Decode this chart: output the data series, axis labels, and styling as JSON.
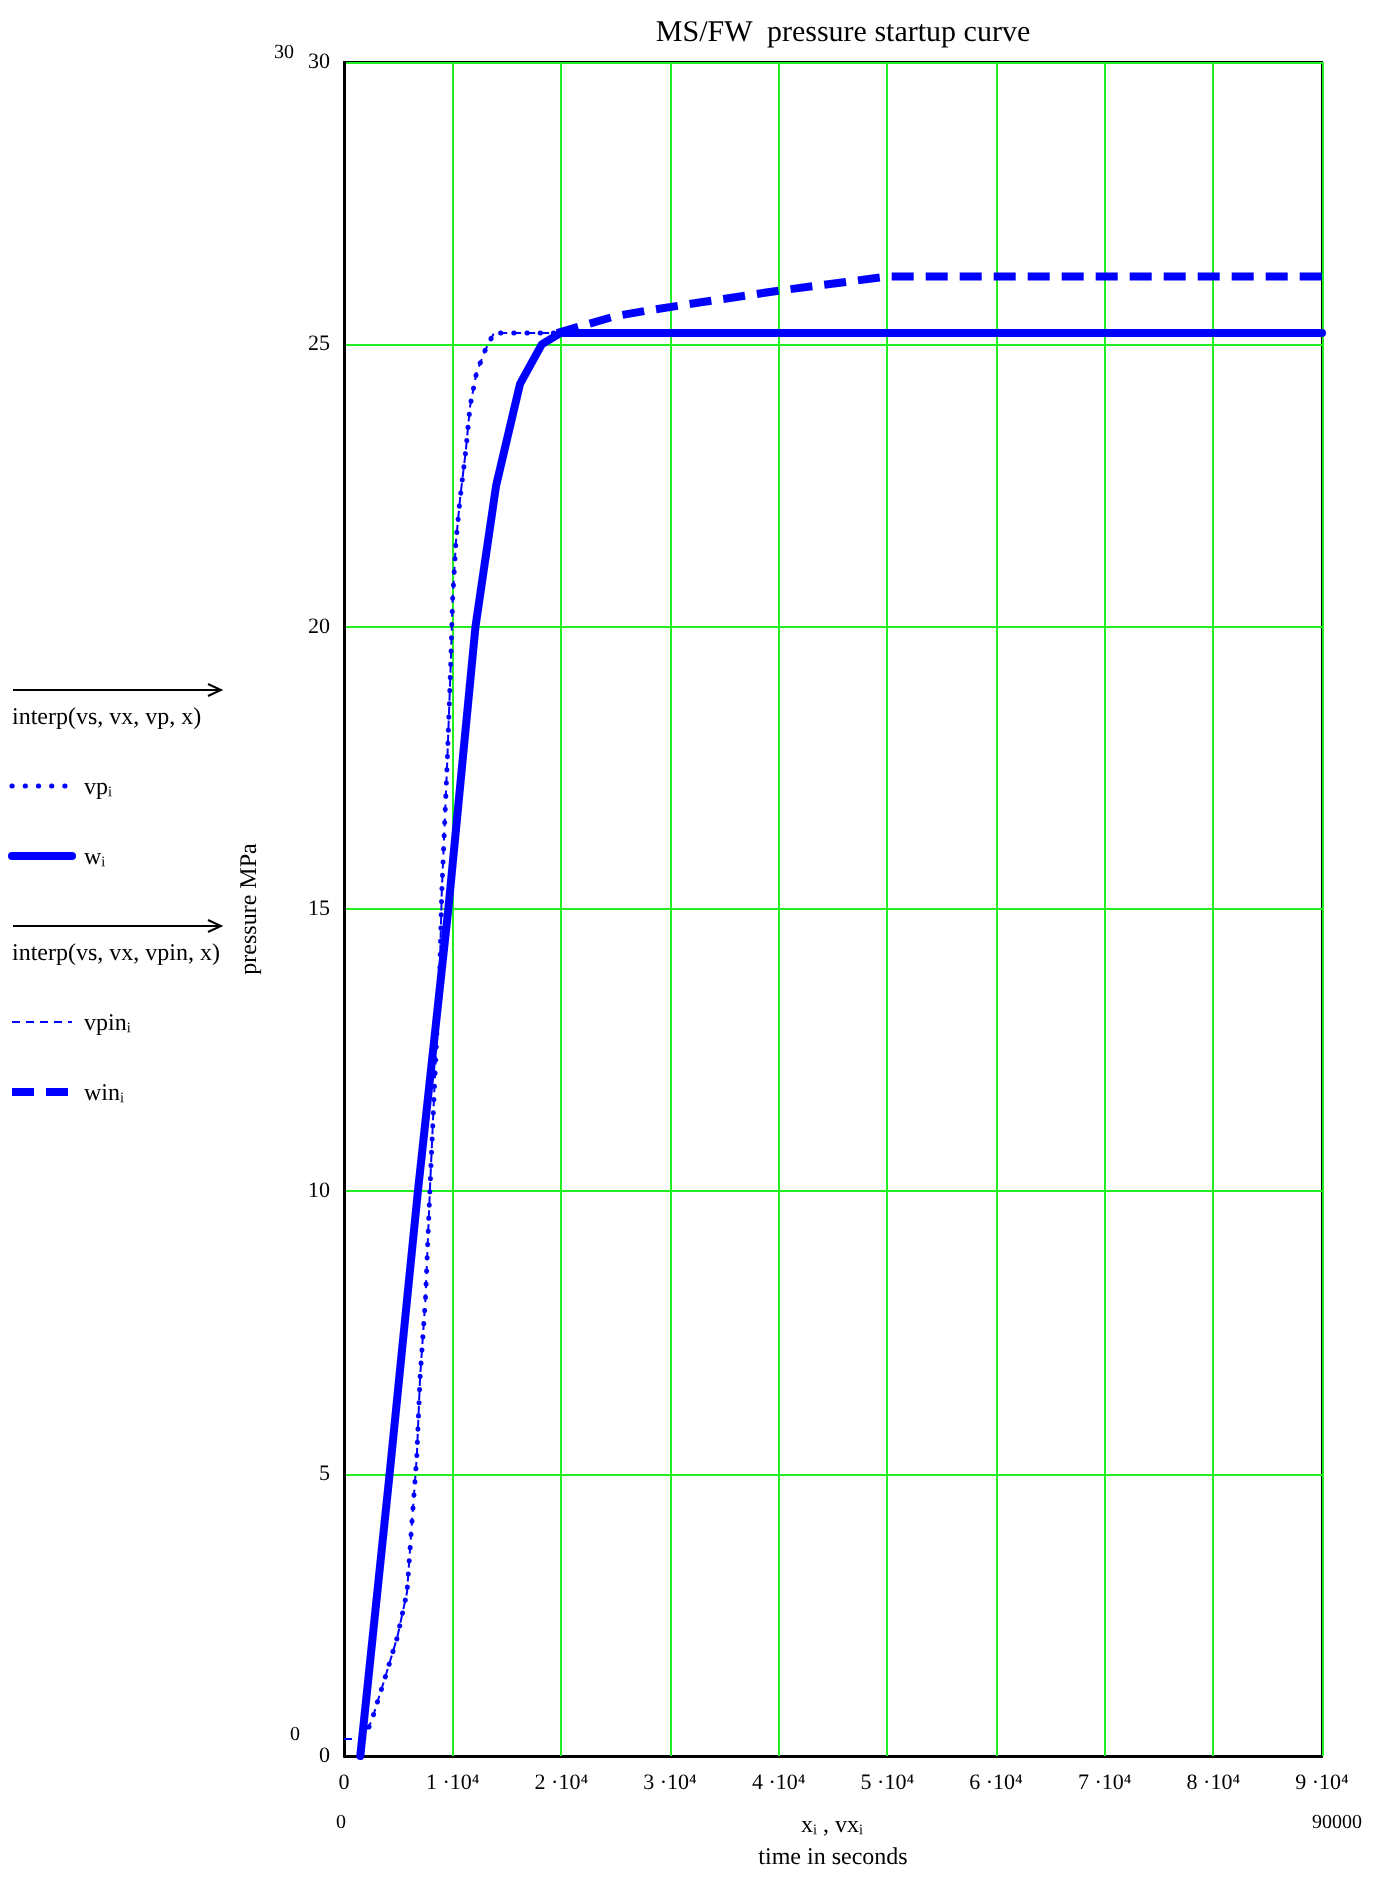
{
  "chart_data": {
    "type": "line",
    "title": "MS/FW  pressure startup curve",
    "xlabel": "time in seconds",
    "ylabel": "pressure MPa",
    "xlim": [
      0,
      90000
    ],
    "xticks": [
      0,
      {
        "value": 10000,
        "label": "1 ·10⁴"
      },
      {
        "value": 20000,
        "label": "2 ·10⁴"
      },
      {
        "value": 30000,
        "label": "3 ·10⁴"
      },
      {
        "value": 40000,
        "label": "4 ·10⁴"
      },
      {
        "value": 50000,
        "label": "5 ·10⁴"
      },
      {
        "value": 60000,
        "label": "6 ·10⁴"
      },
      {
        "value": 70000,
        "label": "7 ·10⁴"
      },
      {
        "value": 80000,
        "label": "8 ·10⁴"
      },
      {
        "value": 90000,
        "label": "9 ·10⁴"
      }
    ],
    "ylim": [
      0,
      30
    ],
    "yticks": [
      0,
      5,
      10,
      15,
      20,
      25,
      30
    ],
    "grid": true,
    "legend": "left",
    "series": [
      {
        "name": "vpᵢ",
        "color": "#0000ff",
        "line_style": "dotted",
        "x": [
          1800,
          2500,
          3800,
          4900,
          5800,
          6200,
          6700,
          7000,
          7500,
          7900,
          8500,
          8800,
          9000,
          9500,
          9800,
          10000,
          10300,
          10700,
          11200,
          11600,
          12200,
          13000,
          13800,
          19600
        ],
        "values": [
          0.3,
          0.6,
          1.4,
          2.1,
          2.9,
          4.0,
          5.3,
          6.7,
          8.1,
          10.0,
          12.6,
          13.8,
          15.3,
          17.6,
          19.2,
          20.5,
          21.5,
          22.3,
          23.1,
          23.9,
          24.5,
          24.9,
          25.2,
          25.2
        ]
      },
      {
        "name": "wᵢ",
        "color": "#0000ff",
        "line_style": "solid",
        "x": [
          1500,
          4200,
          6800,
          9600,
          12100,
          14000,
          16200,
          18200,
          19900,
          90000
        ],
        "values": [
          0,
          5,
          10,
          15,
          20,
          22.5,
          24.3,
          25.0,
          25.2,
          25.2
        ]
      },
      {
        "name": "vpinᵢ",
        "color": "#0000ff",
        "line_style": "dashed",
        "x": [
          0,
          1500,
          2500,
          3800,
          4900,
          5800,
          6200,
          6700,
          7000,
          7500,
          7900,
          8500,
          8800,
          9000,
          9500,
          9800,
          10000,
          10300,
          10700,
          11200,
          11600,
          12200,
          13000,
          13800,
          19600
        ],
        "values": [
          0.3,
          0.3,
          0.6,
          1.4,
          2.1,
          2.9,
          4.0,
          5.3,
          6.7,
          8.1,
          10.0,
          12.6,
          13.8,
          15.3,
          17.6,
          19.2,
          20.5,
          21.5,
          22.3,
          23.1,
          23.9,
          24.5,
          24.9,
          25.2,
          25.2
        ]
      },
      {
        "name": "winᵢ",
        "color": "#0000ff",
        "line_style": "dashed",
        "x": [
          19600,
          25000,
          28000,
          33000,
          40000,
          46000,
          50000,
          90000
        ],
        "values": [
          25.2,
          25.5,
          25.6,
          25.75,
          25.95,
          26.1,
          26.2,
          26.2
        ]
      }
    ],
    "annotations": [
      "xᵢ , vxᵢ",
      "interp(vs, vx, vp, x)",
      "interp(vs, vx, vpin, x)",
      "30",
      "0",
      "0",
      "90000"
    ]
  }
}
